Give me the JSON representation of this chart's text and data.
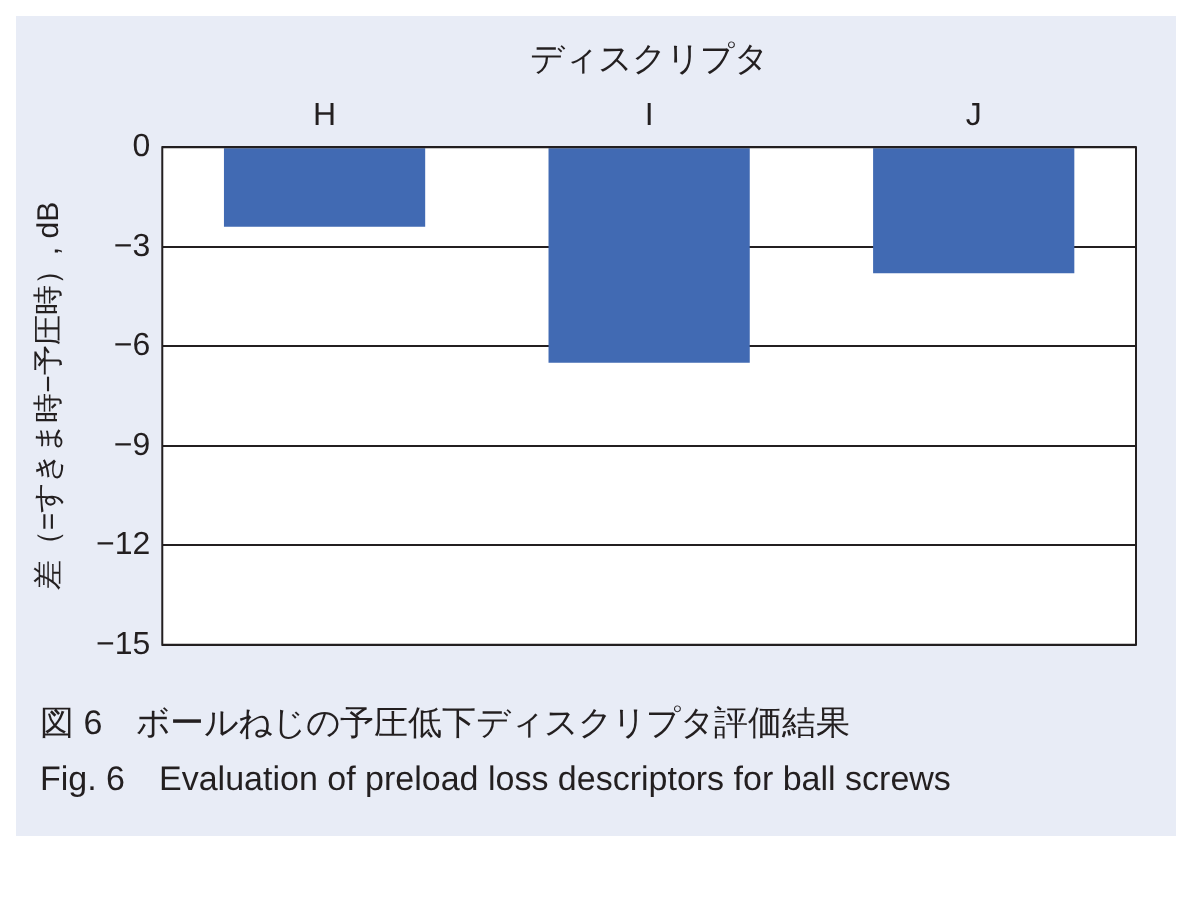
{
  "chart_data": {
    "type": "bar",
    "xlabel": "ディスクリプタ",
    "ylabel": "差（=すきま時−予圧時）, dB",
    "categories": [
      "H",
      "I",
      "J"
    ],
    "values": [
      -2.4,
      -6.5,
      -3.8
    ],
    "color": "#416ab3",
    "ylim": [
      -15,
      0
    ],
    "yticks": [
      0,
      {
        "value": -3,
        "label": "−3"
      },
      {
        "value": -6,
        "label": "−6"
      },
      {
        "value": -9,
        "label": "−9"
      },
      {
        "value": -12,
        "label": "−12"
      },
      {
        "value": -15,
        "label": "−15"
      }
    ],
    "grid": "y",
    "annotations": [
      "図 6　ボールねじの予圧低下ディスクリプタ評価結果",
      "Fig. 6　Evaluation of preload loss  descriptors for ball screws"
    ]
  }
}
